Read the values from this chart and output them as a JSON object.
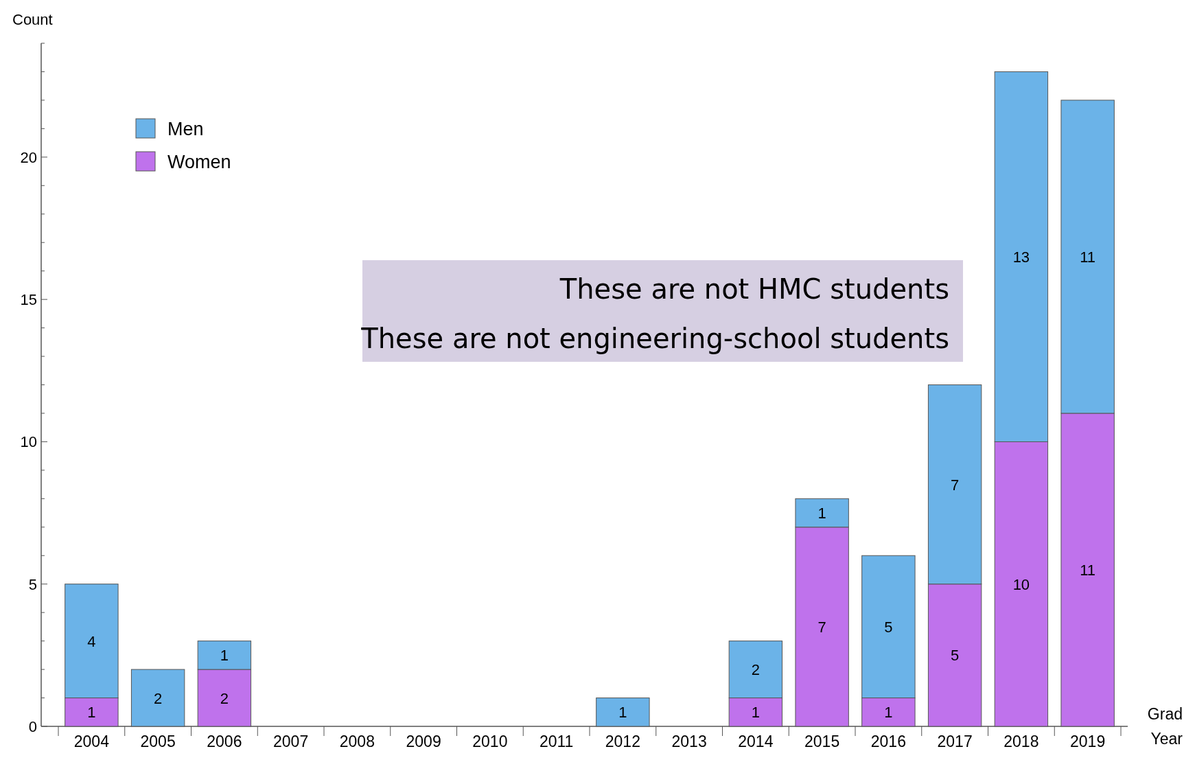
{
  "chart_data": {
    "type": "bar",
    "stacked": true,
    "ylabel": "Count",
    "xlabel": "Grad Year",
    "categories": [
      "2004",
      "2005",
      "2006",
      "2007",
      "2008",
      "2009",
      "2010",
      "2011",
      "2012",
      "2013",
      "2014",
      "2015",
      "2016",
      "2017",
      "2018",
      "2019"
    ],
    "series": [
      {
        "name": "Women",
        "color": "#bf72ec",
        "values": [
          1,
          0,
          2,
          0,
          0,
          0,
          0,
          0,
          0,
          0,
          1,
          7,
          1,
          5,
          10,
          11
        ],
        "value_labels": [
          "1",
          null,
          "2",
          null,
          null,
          null,
          null,
          null,
          null,
          null,
          "1",
          "7",
          "1",
          "5",
          "10",
          "11"
        ]
      },
      {
        "name": "Men",
        "color": "#6bb3e8",
        "values": [
          4,
          2,
          1,
          0,
          0,
          0,
          0,
          0,
          1,
          0,
          2,
          1,
          5,
          7,
          13,
          11
        ],
        "value_labels": [
          "4",
          "2",
          "1",
          null,
          null,
          null,
          null,
          null,
          "1",
          null,
          "2",
          "1",
          "5",
          "7",
          "13",
          "11"
        ]
      }
    ],
    "ylim": [
      0,
      24
    ],
    "yticks": [
      0,
      {
        "value": 1,
        "label": null
      },
      {
        "value": 2,
        "label": null
      },
      {
        "value": 3,
        "label": null
      },
      {
        "value": 4,
        "label": null
      },
      5,
      {
        "value": 6,
        "label": null
      },
      {
        "value": 7,
        "label": null
      },
      {
        "value": 8,
        "label": null
      },
      {
        "value": 9,
        "label": null
      },
      10,
      {
        "value": 11,
        "label": null
      },
      {
        "value": 12,
        "label": null
      },
      {
        "value": 13,
        "label": null
      },
      {
        "value": 14,
        "label": null
      },
      15,
      {
        "value": 16,
        "label": null
      },
      {
        "value": 17,
        "label": null
      },
      {
        "value": 18,
        "label": null
      },
      {
        "value": 19,
        "label": null
      },
      20,
      {
        "value": 21,
        "label": null
      },
      {
        "value": 22,
        "label": null
      },
      {
        "value": 23,
        "label": null
      },
      {
        "value": 24,
        "label": null
      }
    ],
    "grid": false,
    "legend": "top left",
    "annotations": [
      "These are not HMC students",
      "These are not engineering-school students"
    ]
  }
}
